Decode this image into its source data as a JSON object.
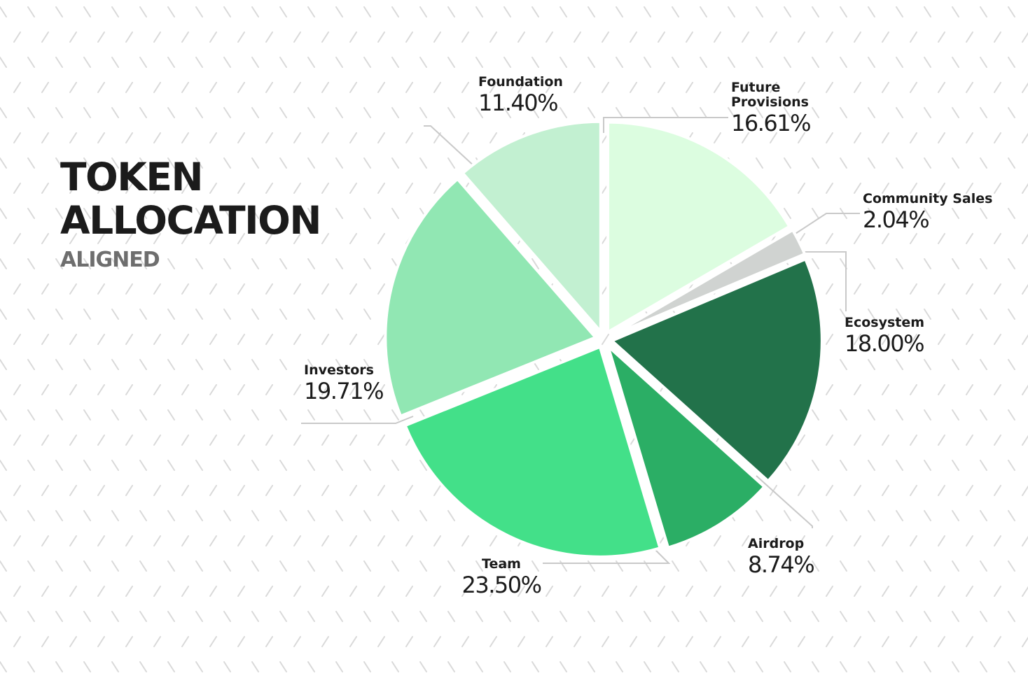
{
  "title": {
    "line1": "TOKEN",
    "line2": "ALLOCATION",
    "subtitle": "ALIGNED"
  },
  "colors": {
    "background": "#ffffff",
    "pattern": "#d9d9d9",
    "leader": "#c9c9c9"
  },
  "chart_data": {
    "type": "pie",
    "unit": "%",
    "slices": [
      {
        "name": "Future\nProvisions",
        "label": "Future Provisions",
        "value": 16.61,
        "value_label": "16.61%",
        "color": "#dcfde0"
      },
      {
        "name": "Community Sales",
        "label": "Community Sales",
        "value": 2.04,
        "value_label": "2.04%",
        "color": "#d0d3d1"
      },
      {
        "name": "Ecosystem",
        "label": "Ecosystem",
        "value": 18.0,
        "value_label": "18.00%",
        "color": "#22724a"
      },
      {
        "name": "Airdrop",
        "label": "Airdrop",
        "value": 8.74,
        "value_label": "8.74%",
        "color": "#2bae65"
      },
      {
        "name": "Team",
        "label": "Team",
        "value": 23.5,
        "value_label": "23.50%",
        "color": "#43e089"
      },
      {
        "name": "Investors",
        "label": "Investors",
        "value": 19.71,
        "value_label": "19.71%",
        "color": "#91e7b3"
      },
      {
        "name": "Foundation",
        "label": "Foundation",
        "value": 11.4,
        "value_label": "11.40%",
        "color": "#c2f0d1"
      }
    ]
  }
}
